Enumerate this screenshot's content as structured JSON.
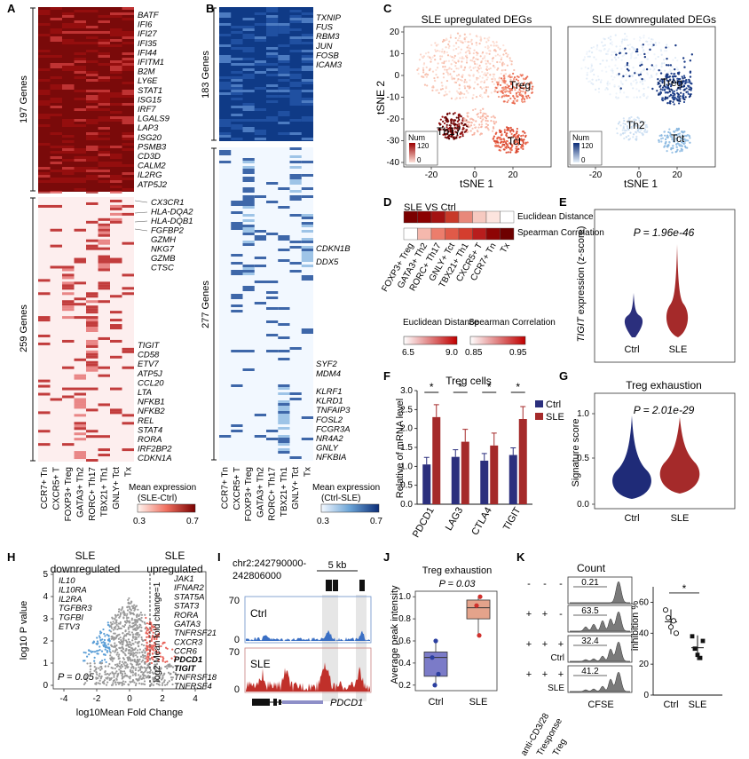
{
  "panels": [
    "A",
    "B",
    "C",
    "D",
    "E",
    "F",
    "G",
    "H",
    "I",
    "J",
    "K"
  ],
  "colors": {
    "red": "#b01a1a",
    "darkred": "#7a0000",
    "blue": "#1c3f8f",
    "lightblue": "#8db8df",
    "navy": "#2b2f7d",
    "gray": "#9a9a9a"
  },
  "panelA": {
    "genes_top": [
      "BATF",
      "IFI6",
      "IFI27",
      "IFI35",
      "IFI44",
      "IFITM1",
      "B2M",
      "LY6E",
      "STAT1",
      "ISG15",
      "IRF7",
      "LGALS9",
      "LAP3",
      "ISG20",
      "PSMB3",
      "CD3D",
      "CALM2",
      "IL2RG",
      "ATP5J2"
    ],
    "genes_bottom1": [
      "CX3CR1",
      "HLA-DQA2",
      "HLA-DQB1",
      "FGFBP2",
      "GZMH",
      "NKG7",
      "GZMB",
      "CTSC"
    ],
    "genes_bottom2": [
      "TIGIT",
      "CD58",
      "ETV7",
      "ATP5J",
      "CCL20",
      "LTA",
      "NFKB1",
      "NFKB2",
      "REL",
      "STAT4",
      "RORA",
      "IRF2BP2",
      "CDKN1A"
    ],
    "count_top": "197 Genes",
    "count_bottom": "259 Genes",
    "columns": [
      "CCR7+ Tn",
      "CXCR5+ T",
      "FOXP3+ Treg",
      "GATA3+ Th2",
      "RORC+ Th17",
      "TBX21+ Th1",
      "GNLY+ Tct",
      "Tx"
    ],
    "legend_title": "Mean expression",
    "legend_sub": "(SLE-Ctrl)",
    "legend_min": "0.3",
    "legend_max": "0.7"
  },
  "panelB": {
    "genes_top": [
      "TXNIP",
      "FUS",
      "RBM3",
      "JUN",
      "FOSB",
      "ICAM3"
    ],
    "genes_mid": [
      "CDKN1B",
      "DDX5"
    ],
    "genes_mid2": [
      "SYF2",
      "MDM4"
    ],
    "genes_bottom": [
      "KLRF1",
      "KLRD1",
      "TNFAIP3",
      "FOSL2",
      "FCGR3A",
      "NR4A2",
      "GNLY",
      "NFKBIA"
    ],
    "count_top": "183 Genes",
    "count_bottom": "277 Genes",
    "columns": [
      "CCR7+ Tn",
      "CXCR5+ T",
      "FOXP3+ Treg",
      "GATA3+ Th2",
      "RORC+ Th17",
      "TBX21+ Th1",
      "GNLY+ Tct",
      "Tx"
    ],
    "legend_title": "Mean expression",
    "legend_sub": "(Ctrl-SLE)",
    "legend_min": "0.3",
    "legend_max": "0.7"
  },
  "panelC": {
    "title_up": "SLE upregulated DEGs",
    "title_down": "SLE downregulated DEGs",
    "ylabel": "tSNE 2",
    "xlabel": "tSNE 1",
    "xticks": [
      "-20",
      "0",
      "20"
    ],
    "yticks": [
      "20",
      "10",
      "0",
      "-10",
      "-20",
      "-30",
      "-40"
    ],
    "labels_up": [
      "Treg",
      "Th17",
      "Tct"
    ],
    "labels_down": [
      "Treg",
      "Th2",
      "Tct"
    ],
    "num_label": "Num",
    "num_max": "120",
    "num_min": "0"
  },
  "panelD": {
    "title": "SLE VS Ctrl",
    "row1": "Euclidean Distance",
    "row2": "Spearman Correlation",
    "columns": [
      "FOXP3+ Treg",
      "GATA3+ Th2",
      "RORC+ Th17",
      "GNLY+ Tct",
      "TBX21+ Th1",
      "CXCR5+ T",
      "CCR7+ Tn",
      "Tx"
    ],
    "legend_ed": "Euclidean Distance",
    "legend_ed_min": "6.5",
    "legend_ed_max": "9.0",
    "legend_sc": "Spearman Correlation",
    "legend_sc_min": "0.85",
    "legend_sc_max": "0.95"
  },
  "panelE": {
    "pval": "P = 1.96e-46",
    "ylabel_gene": "TIGIT",
    "ylabel_rest": " expression (z-score)",
    "cats": [
      "Ctrl",
      "SLE"
    ]
  },
  "panelF": {
    "title": "Treg cells",
    "ylabel": "Relative of mRNA level",
    "yticks": [
      "0.0",
      "0.5",
      "1.0",
      "1.5",
      "2.0",
      "2.5",
      "3.0"
    ],
    "legend": [
      "Ctrl",
      "SLE"
    ],
    "star": "*",
    "chart_data": {
      "type": "bar",
      "categories": [
        "PDCD1",
        "LAG3",
        "CTLA4",
        "TIGIT"
      ],
      "series": [
        {
          "name": "Ctrl",
          "values": [
            1.05,
            1.25,
            1.15,
            1.3
          ]
        },
        {
          "name": "SLE",
          "values": [
            2.3,
            1.65,
            1.55,
            2.25
          ]
        }
      ],
      "ylim": [
        0,
        3.0
      ]
    }
  },
  "panelG": {
    "title": "Treg exhaustion",
    "pval": "P = 2.01e-29",
    "ylabel": "Signature score",
    "yticks": [
      "0.0",
      "0.5",
      "1.0"
    ],
    "cats": [
      "Ctrl",
      "SLE"
    ]
  },
  "panelH": {
    "title_left": "SLE downregulated",
    "title_right": "SLE upregulated",
    "genes_left": [
      "IL10",
      "IL10RA",
      "IL2RA",
      "TGFBR3",
      "TGFBI",
      "ETV3"
    ],
    "genes_right": [
      "JAK1",
      "IFNAR2",
      "STAT5A",
      "STAT3",
      "RORA",
      "GATA3",
      "TNFRSF21",
      "CXCR3",
      "CCR6"
    ],
    "genes_right_bold": [
      "PDCD1",
      "TIGIT"
    ],
    "genes_right2": [
      "TNFRSF18",
      "TNFRSF4"
    ],
    "ylabel": "log10 P value",
    "xlabel": "log10Mean Fold Change",
    "threshold": "log2 Mean fold change=1",
    "pval": "P = 0.05",
    "xticks": [
      "-4",
      "-2",
      "0",
      "2",
      "4"
    ],
    "yticks": [
      "0",
      "1",
      "2",
      "3",
      "4",
      "5"
    ]
  },
  "panelI": {
    "coords": "chr2:242790000-",
    "coords2": "242806000",
    "scale": "5 kb",
    "track1": "Ctrl",
    "track2": "SLE",
    "ymax": "70",
    "ymin": "0",
    "gene": "PDCD1"
  },
  "panelJ": {
    "title": "Treg exhaustion",
    "pval": "P = 0.03",
    "ylabel": "Average peak intensity",
    "yticks": [
      "0.2",
      "0.4",
      "0.6",
      "0.8",
      "1.0"
    ],
    "cats": [
      "Ctrl",
      "SLE"
    ]
  },
  "panelK": {
    "count_label": "Count",
    "rows": [
      "anti-CD3/28",
      "Tresponse",
      "Treg"
    ],
    "symbols": [
      [
        "-",
        "-",
        "-"
      ],
      [
        "+",
        "+",
        "-"
      ],
      [
        "+",
        "+",
        "+"
      ],
      [
        "+",
        "+",
        "+"
      ]
    ],
    "values": [
      "0.21",
      "63.5",
      "32.4",
      "41.2"
    ],
    "row_labels": [
      "",
      "",
      "Ctrl",
      "SLE"
    ],
    "xlabel": "CFSE",
    "ylabel": "inhibition %",
    "yticks": [
      "0",
      "20",
      "40",
      "60"
    ],
    "cats": [
      "Ctrl",
      "SLE"
    ],
    "star": "*",
    "chart_data": {
      "type": "scatter",
      "categories": [
        "Ctrl",
        "SLE"
      ],
      "series": [
        {
          "name": "Ctrl",
          "values": [
            55,
            50,
            44,
            48,
            40
          ]
        },
        {
          "name": "SLE",
          "values": [
            38,
            30,
            26,
            24,
            35
          ]
        }
      ],
      "ylim": [
        0,
        70
      ]
    }
  }
}
